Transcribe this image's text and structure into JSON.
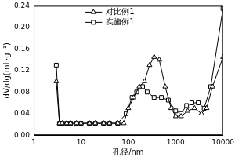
{
  "chart_data": {
    "type": "line",
    "x_label": "孔径/nm",
    "y_label": "dV/dg(mL·g⁻¹)",
    "log": "x",
    "grid": false,
    "legend": "upper left",
    "xlim": [
      1,
      10000
    ],
    "xticks": [
      1,
      10,
      100,
      1000,
      10000
    ],
    "ylim": [
      0,
      0.24
    ],
    "yticks": [
      {
        "value": 0,
        "label": "0.00"
      },
      {
        "value": 0.04,
        "label": "0.04"
      },
      {
        "value": 0.08,
        "label": "0.08"
      },
      {
        "value": 0.12,
        "label": "0.12"
      },
      {
        "value": 0.16,
        "label": "0.16"
      },
      {
        "value": 0.2,
        "label": "0.20"
      },
      {
        "value": 0.24,
        "label": "0.24"
      }
    ],
    "series": [
      {
        "name": "对比例1",
        "color": "#000000",
        "marker": "triangle",
        "x": [
          3,
          3.5,
          4,
          5,
          6,
          8,
          10,
          15,
          20,
          30,
          40,
          60,
          80,
          100,
          130,
          170,
          220,
          280,
          350,
          450,
          600,
          800,
          1000,
          1300,
          1800,
          2500,
          3500,
          4500,
          6000,
          10000
        ],
        "values": [
          0.1,
          0.022,
          0.022,
          0.022,
          0.022,
          0.022,
          0.022,
          0.022,
          0.022,
          0.022,
          0.022,
          0.022,
          0.022,
          0.05,
          0.07,
          0.09,
          0.1,
          0.13,
          0.145,
          0.14,
          0.09,
          0.05,
          0.035,
          0.035,
          0.045,
          0.05,
          0.04,
          0.05,
          0.09,
          0.145
        ]
      },
      {
        "name": "实施例1",
        "color": "#000000",
        "marker": "square",
        "x": [
          3,
          3.5,
          4,
          5,
          6,
          8,
          10,
          15,
          20,
          30,
          40,
          60,
          90,
          120,
          150,
          200,
          250,
          350,
          500,
          700,
          1000,
          1300,
          1700,
          2200,
          3000,
          4000,
          5500,
          10000
        ],
        "values": [
          0.13,
          0.022,
          0.022,
          0.022,
          0.022,
          0.022,
          0.022,
          0.022,
          0.022,
          0.022,
          0.022,
          0.022,
          0.04,
          0.07,
          0.08,
          0.09,
          0.08,
          0.07,
          0.07,
          0.065,
          0.045,
          0.04,
          0.055,
          0.06,
          0.06,
          0.05,
          0.09,
          0.235
        ]
      }
    ]
  }
}
